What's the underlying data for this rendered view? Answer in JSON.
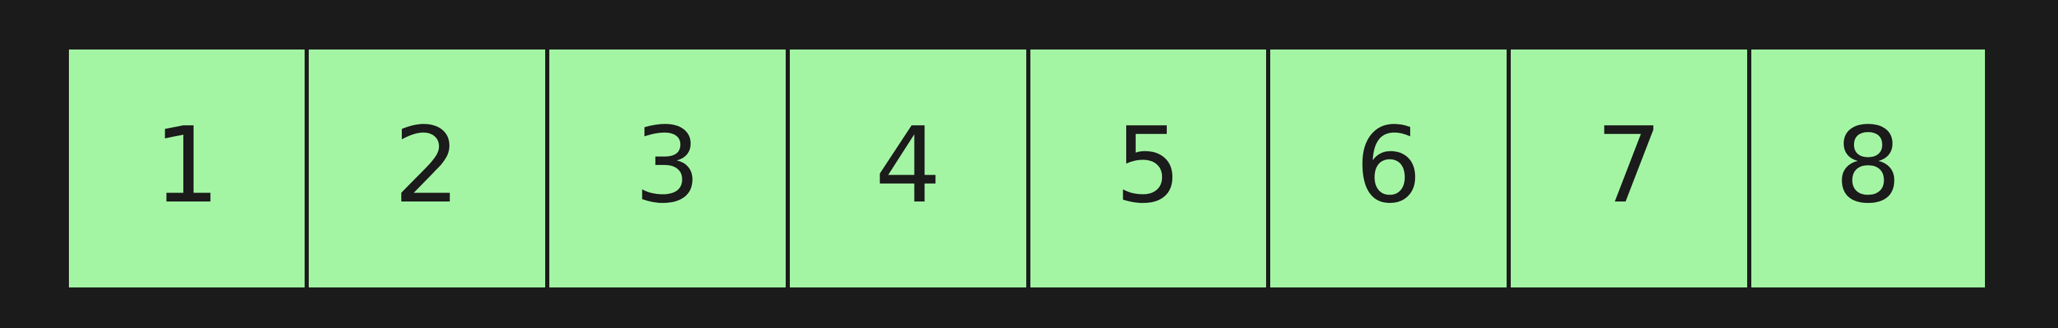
{
  "colors": {
    "background": "#1b1b1b",
    "cell_fill": "#a3f5a3",
    "text": "#1b1b1b"
  },
  "cells": [
    {
      "label": "1"
    },
    {
      "label": "2"
    },
    {
      "label": "3"
    },
    {
      "label": "4"
    },
    {
      "label": "5"
    },
    {
      "label": "6"
    },
    {
      "label": "7"
    },
    {
      "label": "8"
    }
  ]
}
